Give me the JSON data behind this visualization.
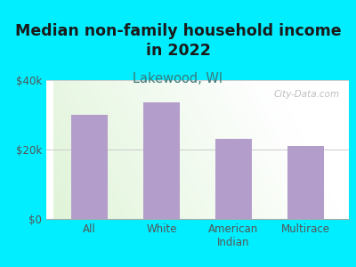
{
  "title": "Median non-family household income\nin 2022",
  "subtitle": "Lakewood, WI",
  "categories": [
    "All",
    "White",
    "American\nIndian",
    "Multirace"
  ],
  "values": [
    30000,
    33500,
    23000,
    21000
  ],
  "bar_color": "#b39dca",
  "background_outer": "#00EEFF",
  "background_inner_topleft": "#dff0d8",
  "background_inner_topright": "#f0f0ee",
  "background_inner_bottomleft": "#e8f5e0",
  "background_inner_bottomright": "#fafafa",
  "title_color": "#1a1a1a",
  "subtitle_color": "#3a7a7a",
  "tick_label_color": "#555555",
  "ylim": [
    0,
    40000
  ],
  "yticks": [
    0,
    20000,
    40000
  ],
  "ytick_labels": [
    "$0",
    "$20k",
    "$40k"
  ],
  "watermark": "City-Data.com",
  "title_fontsize": 12.5,
  "subtitle_fontsize": 10.5,
  "grid_color": "#cccccc"
}
